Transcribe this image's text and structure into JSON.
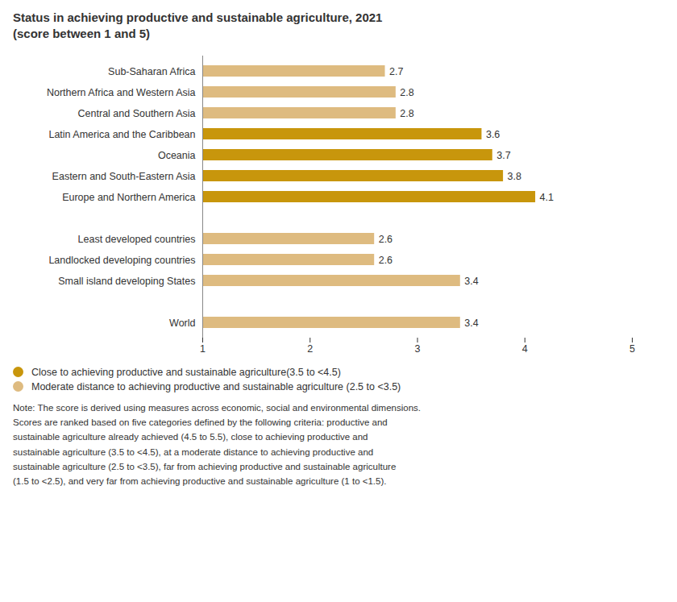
{
  "chart_data": {
    "type": "bar",
    "orientation": "horizontal",
    "title": "Status in achieving productive and sustainable agriculture, 2021",
    "subtitle": "(score between 1 and 5)",
    "categories": [
      "Sub-Saharan Africa",
      "Northern Africa and Western Asia",
      "Central and Southern Asia",
      "Latin America and the Caribbean",
      "Oceania",
      "Eastern and South-Eastern Asia",
      "Europe and Northern America",
      null,
      "Least developed countries",
      "Landlocked developing countries",
      "Small island developing States",
      null,
      "World"
    ],
    "values": [
      2.7,
      2.8,
      2.8,
      3.6,
      3.7,
      3.8,
      4.1,
      null,
      2.6,
      2.6,
      3.4,
      null,
      3.4
    ],
    "colors": [
      "#debb80",
      "#debb80",
      "#debb80",
      "#c8960c",
      "#c8960c",
      "#c8960c",
      "#c8960c",
      null,
      "#debb80",
      "#debb80",
      "#debb80",
      null,
      "#debb80"
    ],
    "xlim": [
      1,
      5
    ],
    "xticks": [
      1,
      2,
      3,
      4,
      5
    ],
    "grid": false,
    "data_labels": true,
    "legend": "bottom",
    "legend_entries": [
      {
        "name": "Close to achieving productive and sustainable agriculture(3.5 to <4.5)",
        "color": "#c8960c"
      },
      {
        "name": "Moderate distance to achieving productive and sustainable agriculture (2.5 to <3.5)",
        "color": "#debb80"
      }
    ],
    "note": "Note: The score is derived using measures across economic, social and environmental dimensions.\nScores are ranked based on five categories defined by the following criteria: productive and\nsustainable agriculture already achieved (4.5 to 5.5), close to achieving productive and\nsustainable agriculture (3.5 to <4.5), at a moderate distance to achieving productive and\nsustainable agriculture (2.5 to <3.5), far from achieving productive and sustainable agriculture\n(1.5 to <2.5), and very far from achieving productive and sustainable agriculture (1 to <1.5)."
  }
}
